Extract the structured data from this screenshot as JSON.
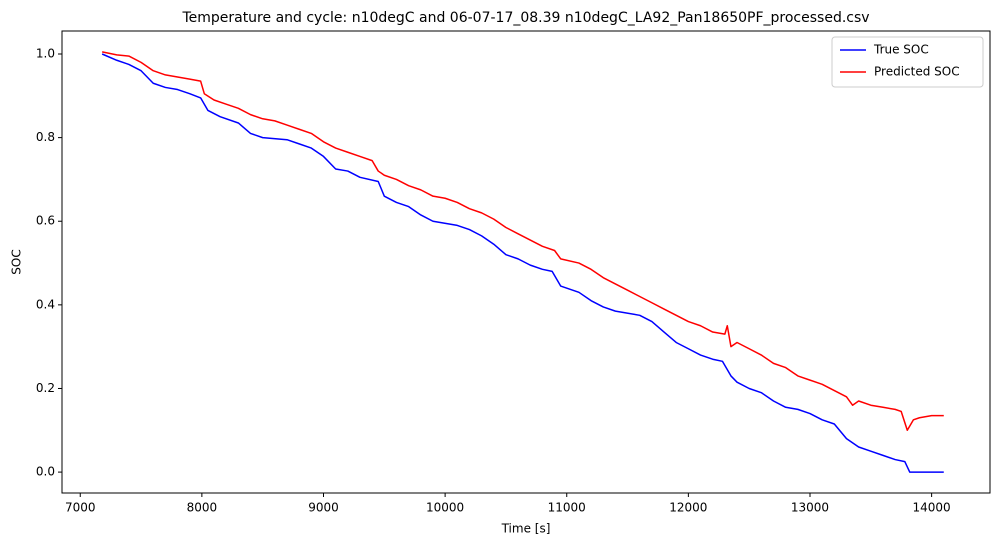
{
  "chart_data": {
    "type": "line",
    "title": "Temperature and cycle: n10degC and 06-07-17_08.39 n10degC_LA92_Pan18650PF_processed.csv",
    "x_label": "Time [s]",
    "y_label": "SOC",
    "xlim": [
      6850,
      14480
    ],
    "ylim": [
      -0.05,
      1.055
    ],
    "xticks": [
      7000,
      8000,
      9000,
      10000,
      11000,
      12000,
      13000,
      14000
    ],
    "yticks": [
      {
        "value": 0,
        "label": "0.0"
      },
      0.2,
      0.4,
      0.6,
      0.8,
      {
        "value": 1,
        "label": "1.0"
      }
    ],
    "grid": false,
    "legend": "upper-right",
    "series": [
      {
        "name": "True SOC",
        "color": "#0000ff",
        "x": [
          7180,
          7300,
          7400,
          7500,
          7600,
          7700,
          7800,
          7900,
          7990,
          8050,
          8150,
          8300,
          8400,
          8500,
          8700,
          8800,
          8900,
          9000,
          9100,
          9200,
          9300,
          9450,
          9500,
          9600,
          9700,
          9800,
          9900,
          10100,
          10200,
          10300,
          10400,
          10500,
          10600,
          10700,
          10800,
          10880,
          10950,
          11100,
          11200,
          11300,
          11400,
          11600,
          11700,
          11800,
          11900,
          12000,
          12100,
          12200,
          12280,
          12350,
          12400,
          12500,
          12600,
          12700,
          12800,
          12900,
          13000,
          13100,
          13200,
          13300,
          13400,
          13500,
          13600,
          13700,
          13780,
          13820,
          14100
        ],
        "values": [
          1.0,
          0.985,
          0.975,
          0.96,
          0.93,
          0.92,
          0.915,
          0.905,
          0.895,
          0.865,
          0.85,
          0.835,
          0.81,
          0.8,
          0.795,
          0.785,
          0.775,
          0.755,
          0.725,
          0.72,
          0.705,
          0.695,
          0.66,
          0.645,
          0.635,
          0.615,
          0.6,
          0.59,
          0.58,
          0.565,
          0.545,
          0.52,
          0.51,
          0.495,
          0.485,
          0.48,
          0.445,
          0.43,
          0.41,
          0.395,
          0.385,
          0.375,
          0.36,
          0.335,
          0.31,
          0.295,
          0.28,
          0.27,
          0.265,
          0.23,
          0.215,
          0.2,
          0.19,
          0.17,
          0.155,
          0.15,
          0.14,
          0.125,
          0.115,
          0.08,
          0.06,
          0.05,
          0.04,
          0.03,
          0.025,
          0.0,
          0.0
        ]
      },
      {
        "name": "Predicted SOC",
        "color": "#ff0000",
        "x": [
          7180,
          7300,
          7400,
          7500,
          7600,
          7700,
          7800,
          7900,
          7990,
          8020,
          8100,
          8200,
          8300,
          8400,
          8500,
          8600,
          8700,
          8800,
          8900,
          9000,
          9100,
          9200,
          9300,
          9400,
          9450,
          9500,
          9600,
          9700,
          9800,
          9900,
          10000,
          10100,
          10200,
          10300,
          10400,
          10500,
          10600,
          10700,
          10800,
          10900,
          10950,
          11100,
          11200,
          11300,
          11400,
          11500,
          11600,
          11700,
          11800,
          11900,
          12000,
          12100,
          12200,
          12300,
          12320,
          12350,
          12400,
          12500,
          12600,
          12700,
          12800,
          12900,
          13000,
          13100,
          13200,
          13300,
          13350,
          13400,
          13500,
          13600,
          13700,
          13750,
          13800,
          13850,
          13900,
          14000,
          14100
        ],
        "values": [
          1.005,
          0.998,
          0.995,
          0.98,
          0.96,
          0.95,
          0.945,
          0.94,
          0.935,
          0.905,
          0.89,
          0.88,
          0.87,
          0.855,
          0.845,
          0.84,
          0.83,
          0.82,
          0.81,
          0.79,
          0.775,
          0.765,
          0.755,
          0.745,
          0.72,
          0.71,
          0.7,
          0.685,
          0.675,
          0.66,
          0.655,
          0.645,
          0.63,
          0.62,
          0.605,
          0.585,
          0.57,
          0.555,
          0.54,
          0.53,
          0.51,
          0.5,
          0.485,
          0.465,
          0.45,
          0.435,
          0.42,
          0.405,
          0.39,
          0.375,
          0.36,
          0.35,
          0.335,
          0.33,
          0.35,
          0.3,
          0.31,
          0.295,
          0.28,
          0.26,
          0.25,
          0.23,
          0.22,
          0.21,
          0.195,
          0.18,
          0.16,
          0.17,
          0.16,
          0.155,
          0.15,
          0.145,
          0.1,
          0.125,
          0.13,
          0.135,
          0.135
        ]
      }
    ]
  }
}
